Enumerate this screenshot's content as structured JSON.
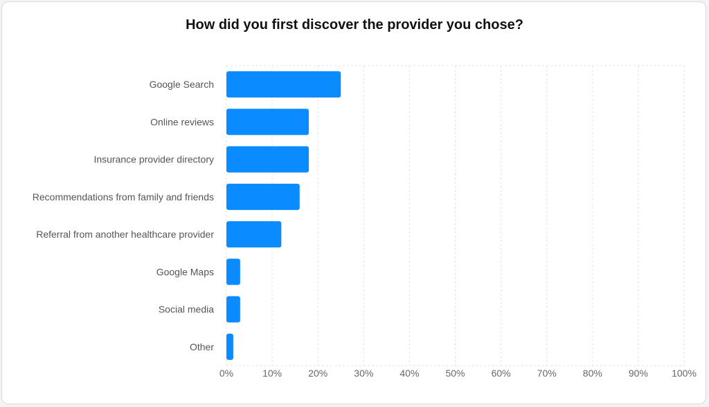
{
  "chart_data": {
    "type": "bar",
    "orientation": "horizontal",
    "title": "How did you first discover the provider you chose?",
    "categories": [
      "Google Search",
      "Online reviews",
      "Insurance provider directory",
      "Recommendations from family and friends",
      "Referral from another healthcare provider",
      "Google Maps",
      "Social media",
      "Other"
    ],
    "values": [
      25,
      18,
      18,
      16,
      12,
      3,
      3,
      1.5
    ],
    "xlim": [
      0,
      100
    ],
    "x_ticks": [
      "0%",
      "10%",
      "20%",
      "30%",
      "40%",
      "50%",
      "60%",
      "70%",
      "80%",
      "90%",
      "100%"
    ],
    "xlabel": "",
    "ylabel": "",
    "grid": true,
    "bar_color": "#0a8bff",
    "grid_color": "#e3e3e3"
  }
}
